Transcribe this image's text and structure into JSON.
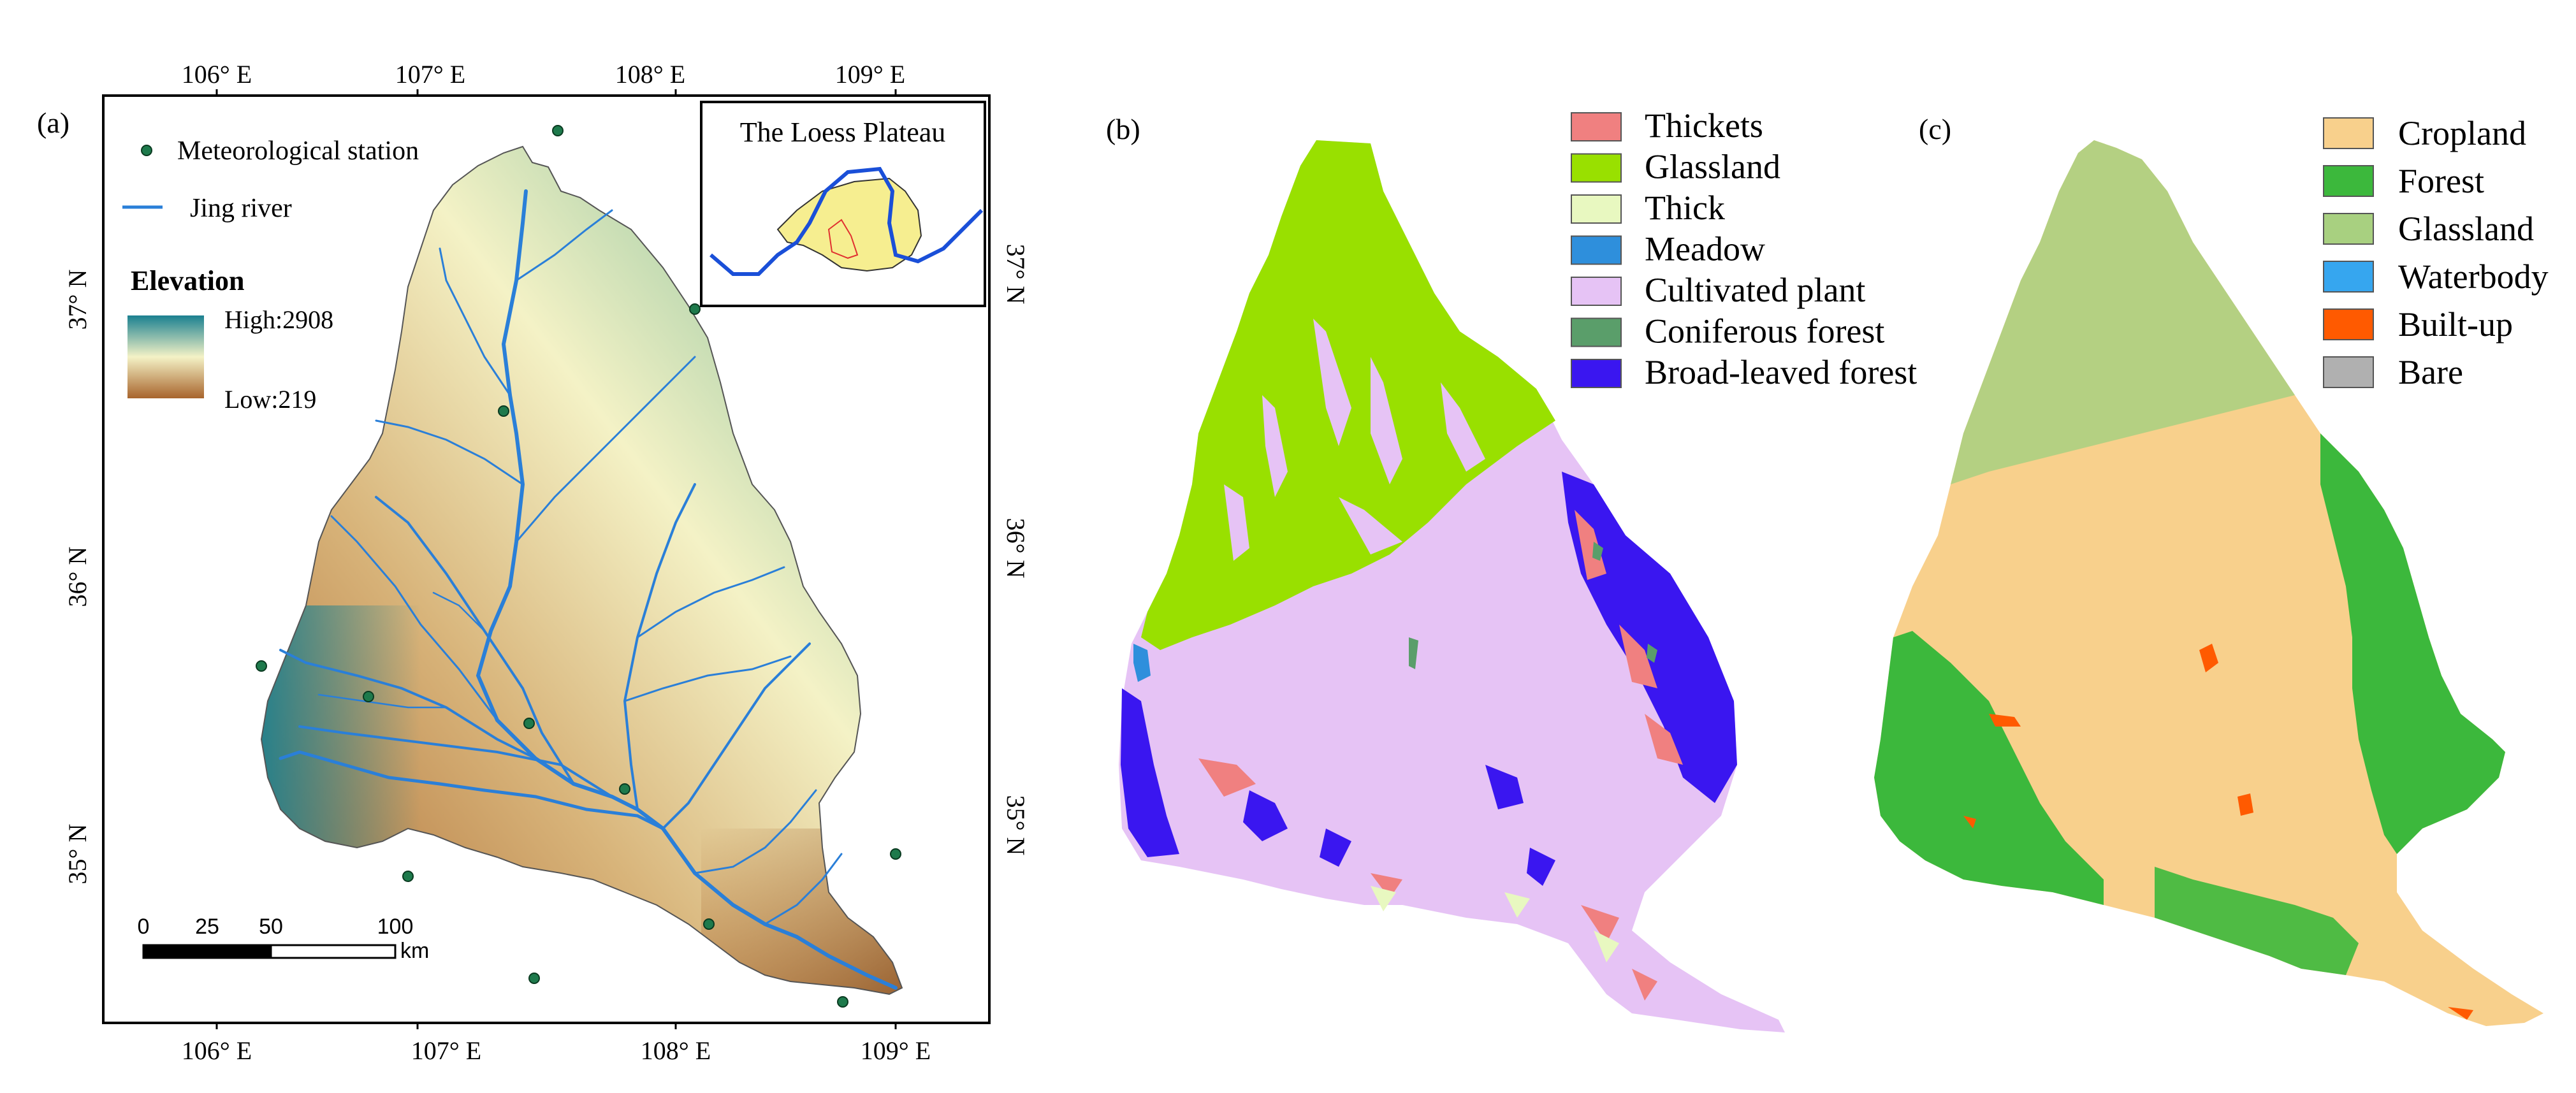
{
  "panel_a": {
    "label": "(a)",
    "lon_labels_top": [
      "106° E",
      "107° E",
      "108° E",
      "109° E"
    ],
    "lon_labels_bottom": [
      "106° E",
      "107° E",
      "108° E",
      "109° E"
    ],
    "lat_labels_left": [
      "37° N",
      "36° N",
      "35° N"
    ],
    "lat_labels_right": [
      "37° N",
      "36° N",
      "35° N"
    ],
    "legend": {
      "station_label": "Meteorological station",
      "river_label": "Jing river",
      "elevation_title": "Elevation",
      "elevation_high": "High:2908",
      "elevation_low": "Low:219"
    },
    "inset_title": "The Loess Plateau",
    "scale_bar": {
      "ticks": [
        "0",
        "25",
        "50",
        "100"
      ],
      "unit": "km"
    }
  },
  "panel_b": {
    "label": "(b)",
    "legend": [
      {
        "label": "Thickets",
        "color": "#f08080"
      },
      {
        "label": "Glassland",
        "color": "#99e000"
      },
      {
        "label": "Thick",
        "color": "#e8f8c0"
      },
      {
        "label": "Meadow",
        "color": "#2e8fdc"
      },
      {
        "label": "Cultivated plant",
        "color": "#e6c3f5"
      },
      {
        "label": "Coniferous forest",
        "color": "#5a9e6a"
      },
      {
        "label": "Broad-leaved forest",
        "color": "#3a16f0"
      }
    ]
  },
  "panel_c": {
    "label": "(c)",
    "legend": [
      {
        "label": "Cropland",
        "color": "#f8d08c"
      },
      {
        "label": "Forest",
        "color": "#3cb83c"
      },
      {
        "label": "Glassland",
        "color": "#a8d080"
      },
      {
        "label": "Waterbody",
        "color": "#36a6ef"
      },
      {
        "label": "Built-up",
        "color": "#ff5a00"
      },
      {
        "label": "Bare",
        "color": "#b0b0b0"
      }
    ]
  },
  "colors": {
    "elev_high": "#1a8090",
    "elev_mid": "#f4f2c6",
    "elev_low": "#a8642c",
    "river": "#2a7fd8",
    "station": "#1e7a4c"
  }
}
